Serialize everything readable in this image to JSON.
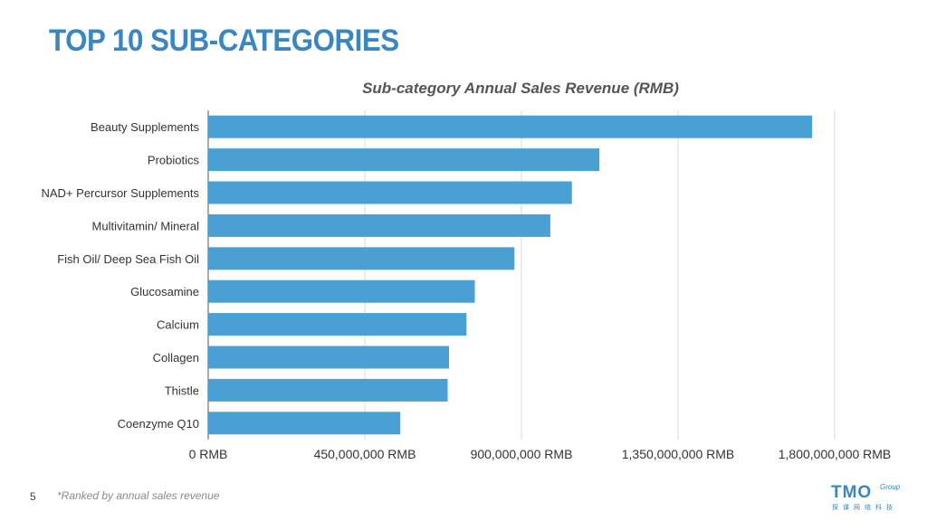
{
  "slide": {
    "title": "TOP 10 SUB-CATEGORIES",
    "page_number": "5",
    "footnote": "*Ranked by annual sales revenue"
  },
  "logo": {
    "mark": "TMO",
    "word": "Group",
    "chinese": "探谋网络科技"
  },
  "colors": {
    "bar": "#4a9fd3",
    "title": "#3a86c0",
    "grid": "#d9d9d9"
  },
  "chart_data": {
    "type": "bar",
    "orientation": "horizontal",
    "title": "Sub-category Annual Sales Revenue (RMB)",
    "categories": [
      "Beauty Supplements",
      "Probiotics",
      "NAD+ Percursor Supplements",
      "Multivitamin/ Mineral",
      "Fish Oil/ Deep Sea Fish Oil",
      "Glucosamine",
      "Calcium",
      "Collagen",
      "Thistle",
      "Coenzyme Q10"
    ],
    "values": [
      1735000000,
      1124000000,
      1045000000,
      983000000,
      880000000,
      766000000,
      742000000,
      692000000,
      688000000,
      552000000
    ],
    "xlim": [
      0,
      1800000000
    ],
    "xticks": [
      0,
      450000000,
      900000000,
      1350000000,
      1800000000
    ],
    "xtick_labels": [
      "0 RMB",
      "450,000,000 RMB",
      "900,000,000 RMB",
      "1,350,000,000 RMB",
      "1,800,000,000 RMB"
    ],
    "grid": "vertical",
    "legend": "none"
  }
}
